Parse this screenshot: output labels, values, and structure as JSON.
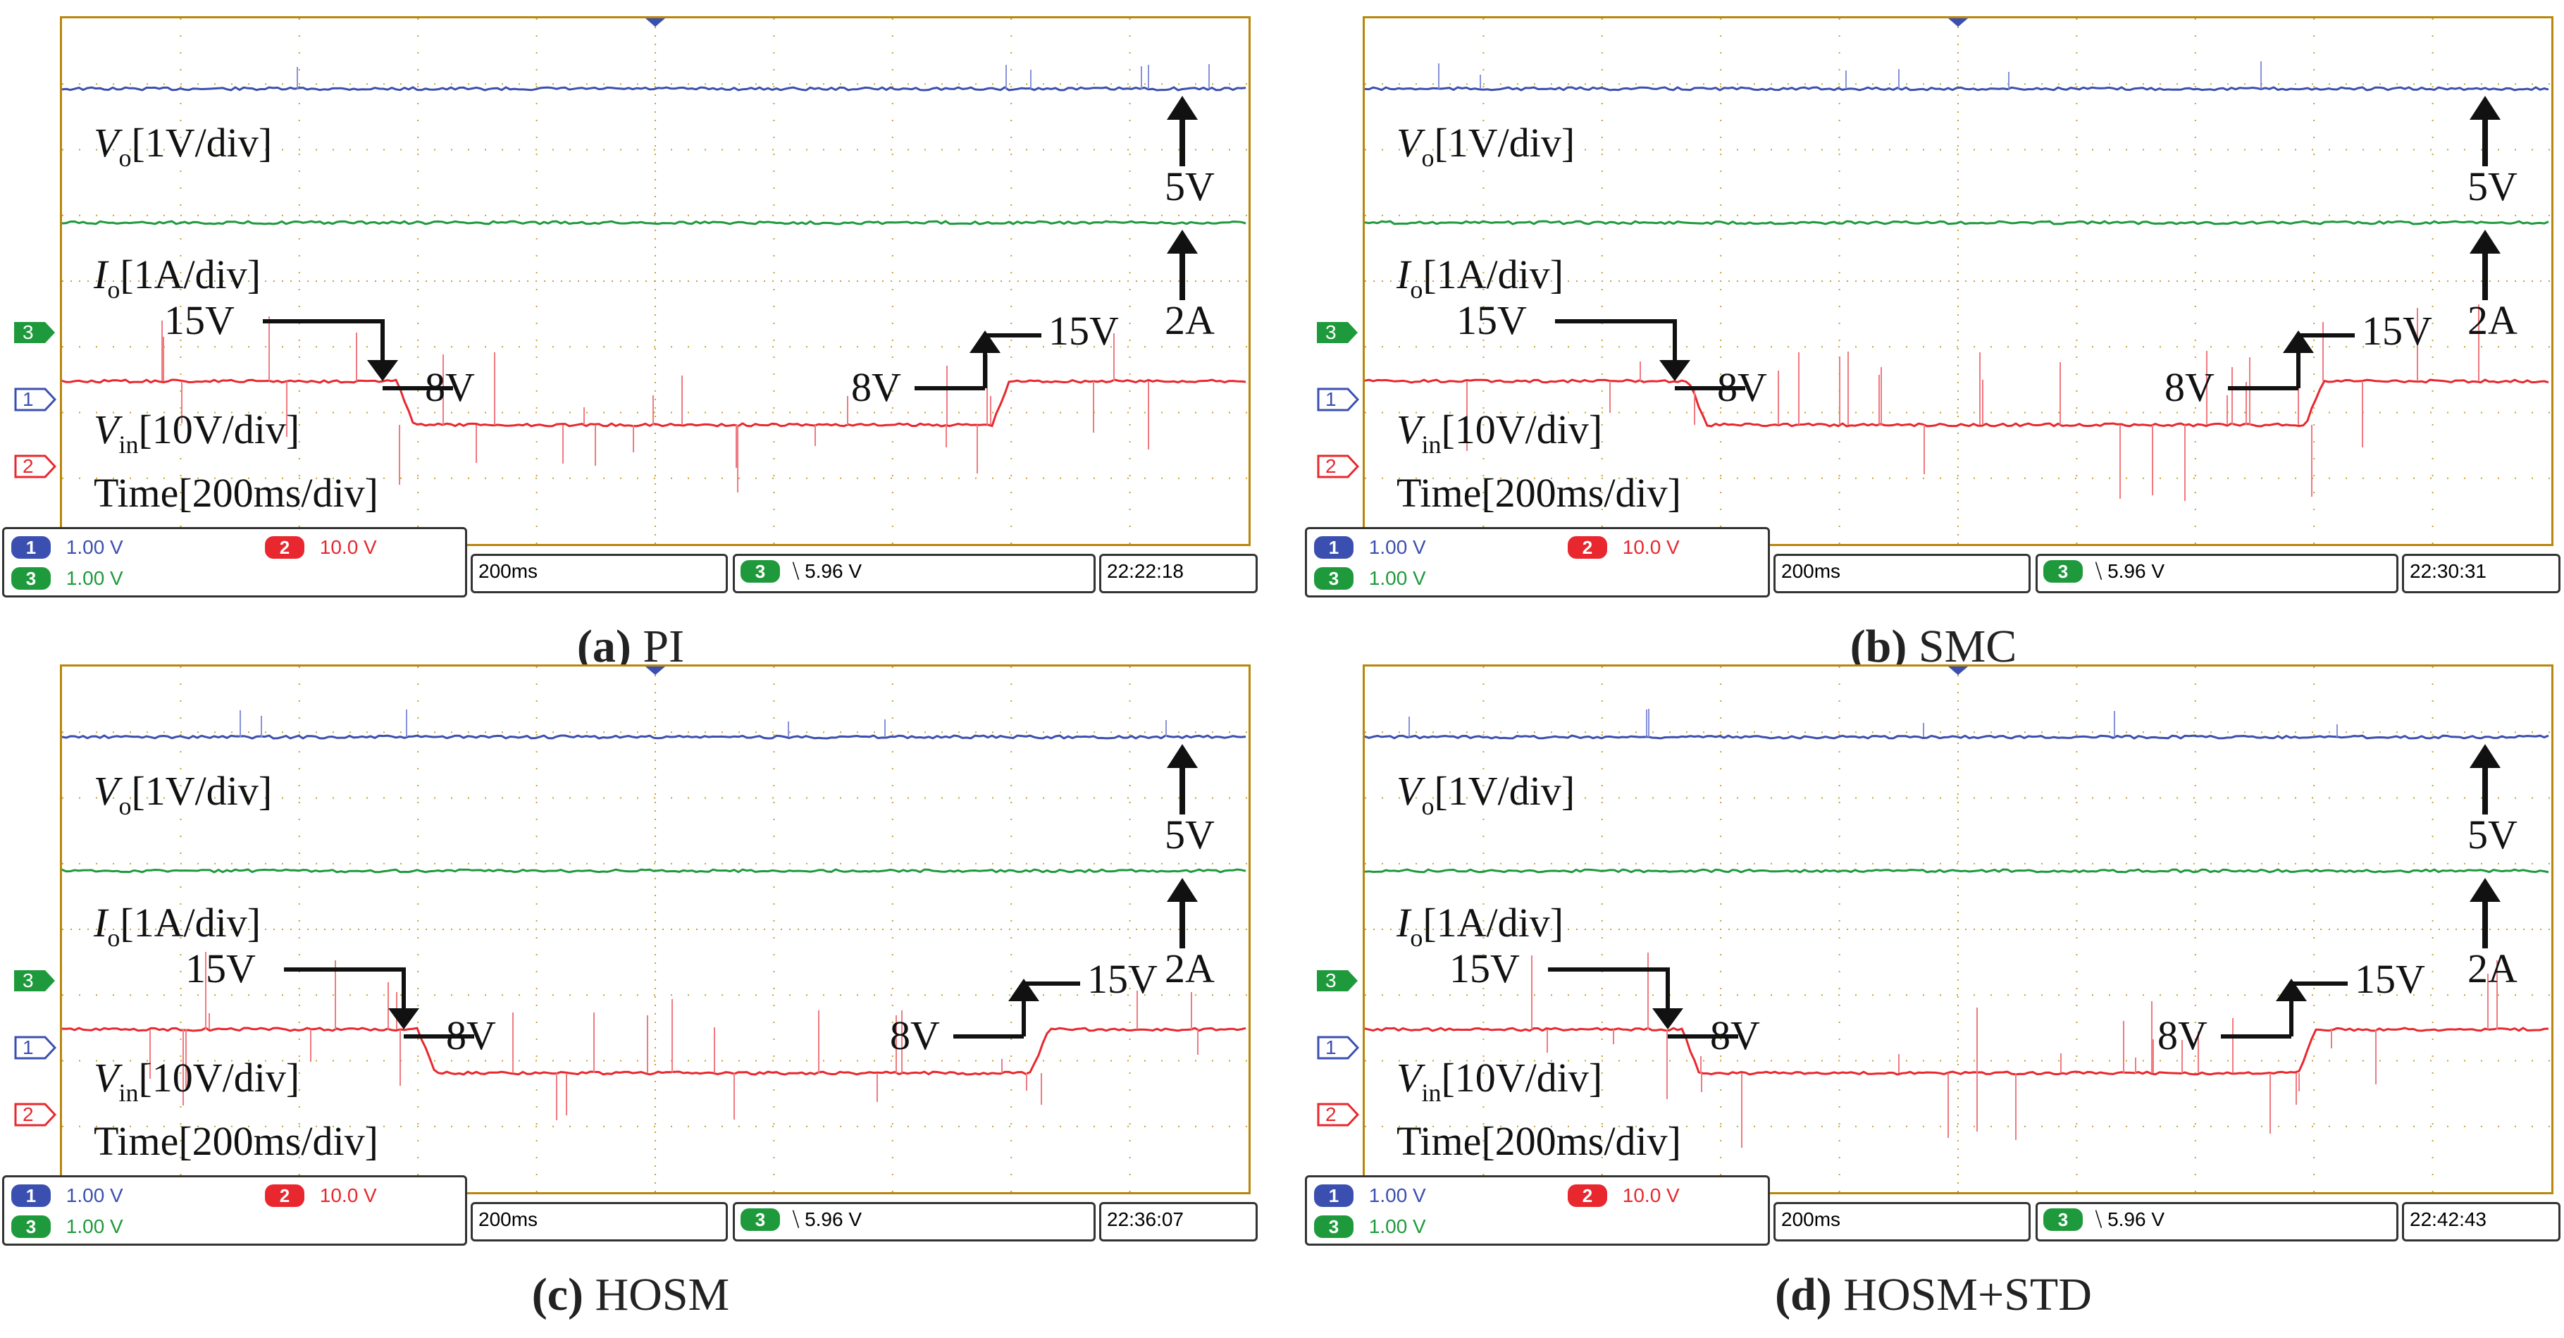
{
  "panels": [
    {
      "caption_id": "(a)",
      "caption_name": "PI",
      "v_time": "22:22:18"
    },
    {
      "caption_id": "(b)",
      "caption_name": "SMC",
      "v_time": "22:30:31"
    },
    {
      "caption_id": "(c)",
      "caption_name": "HOSM",
      "v_time": "22:36:07"
    },
    {
      "caption_id": "(d)",
      "caption_name": "HOSM+STD",
      "v_time": "22:42:43"
    }
  ],
  "labels": {
    "vo_sym": "V",
    "vo_sub": "o",
    "vo_scale": "[1V/div]",
    "io_sym": "I",
    "io_sub": "o",
    "io_scale": "[1A/div]",
    "vin_sym": "V",
    "vin_sub": "in",
    "vin_scale": "[10V/div]",
    "time": "Time[200ms/div]",
    "ref_5v": "5V",
    "ref_2a": "2A",
    "step_hi": "15V",
    "step_lo": "8V"
  },
  "scope_status": {
    "ch1_num": "1",
    "ch1_scale": "1.00 V",
    "ch2_num": "2",
    "ch2_scale": "10.0 V",
    "ch3_num": "3",
    "ch3_scale": "1.00 V",
    "timebase": "200ms",
    "trig_ch": "3",
    "trig_level": "⧹ 5.96 V"
  },
  "colors": {
    "ch1": "#3b4fb0",
    "ch2": "#e8282e",
    "ch3": "#1e9a3c",
    "grid": "#b8860b"
  },
  "chart_data": [
    {
      "type": "line",
      "title": "(a) PI",
      "series": [
        {
          "name": "Vo",
          "values": [
            5,
            5,
            5,
            5,
            5,
            5
          ]
        },
        {
          "name": "Io",
          "values": [
            2,
            2,
            2,
            2,
            2,
            2
          ]
        },
        {
          "name": "Vin",
          "values": [
            15,
            15,
            8,
            8,
            15,
            15
          ]
        }
      ]
    },
    {
      "type": "line",
      "title": "(b) SMC",
      "series": [
        {
          "name": "Vo",
          "values": [
            5,
            5,
            5,
            5,
            5,
            5
          ]
        },
        {
          "name": "Io",
          "values": [
            2,
            2,
            2,
            2,
            2,
            2
          ]
        },
        {
          "name": "Vin",
          "values": [
            15,
            15,
            8,
            8,
            15,
            15
          ]
        }
      ]
    },
    {
      "type": "line",
      "title": "(c) HOSM",
      "series": [
        {
          "name": "Vo",
          "values": [
            5,
            5,
            5,
            5,
            5,
            5
          ]
        },
        {
          "name": "Io",
          "values": [
            2,
            2,
            2,
            2,
            2,
            2
          ]
        },
        {
          "name": "Vin",
          "values": [
            15,
            15,
            8,
            8,
            15,
            15
          ]
        }
      ]
    },
    {
      "type": "line",
      "title": "(d) HOSM+STD",
      "series": [
        {
          "name": "Vo",
          "values": [
            5,
            5,
            5,
            5,
            5,
            5
          ]
        },
        {
          "name": "Io",
          "values": [
            2,
            2,
            2,
            2,
            2,
            2
          ]
        },
        {
          "name": "Vin",
          "values": [
            15,
            15,
            8,
            8,
            15,
            15
          ]
        }
      ]
    }
  ]
}
